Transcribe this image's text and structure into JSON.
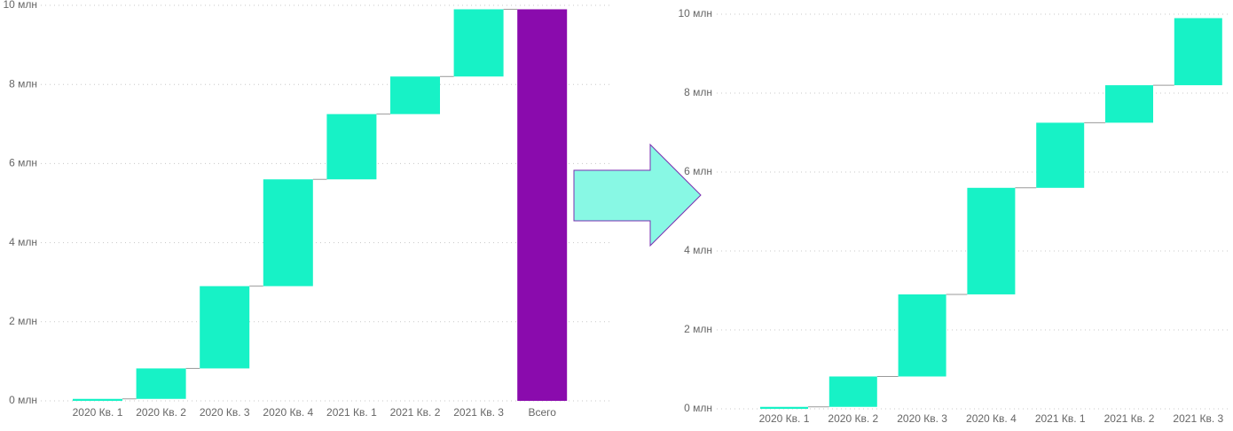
{
  "chart_data": [
    {
      "type": "waterfall",
      "categories": [
        "2020 Кв. 1",
        "2020 Кв. 2",
        "2020 Кв. 3",
        "2020 Кв. 4",
        "2021 Кв. 1",
        "2021 Кв. 2",
        "2021 Кв. 3",
        "Всего"
      ],
      "values": [
        0.05,
        0.77,
        2.08,
        2.7,
        1.65,
        0.95,
        1.7,
        9.9
      ],
      "is_total": [
        false,
        false,
        false,
        false,
        false,
        false,
        false,
        true
      ],
      "color": "#17f2c6",
      "total_color": "#8a0bad",
      "ylim": [
        0,
        10
      ],
      "yticks": [
        {
          "value": 0,
          "label": "0 млн"
        },
        {
          "value": 2,
          "label": "2 млн"
        },
        {
          "value": 4,
          "label": "4 млн"
        },
        {
          "value": 6,
          "label": "6 млн"
        },
        {
          "value": 8,
          "label": "8 млн"
        },
        {
          "value": 10,
          "label": "10 млн"
        }
      ],
      "grid": true
    },
    {
      "type": "waterfall",
      "categories": [
        "2020 Кв. 1",
        "2020 Кв. 2",
        "2020 Кв. 3",
        "2020 Кв. 4",
        "2021 Кв. 1",
        "2021 Кв. 2",
        "2021 Кв. 3"
      ],
      "values": [
        0.05,
        0.77,
        2.08,
        2.7,
        1.65,
        0.95,
        1.7
      ],
      "is_total": [
        false,
        false,
        false,
        false,
        false,
        false,
        false
      ],
      "color": "#17f2c6",
      "total_color": "#8a0bad",
      "ylim": [
        0,
        10
      ],
      "yticks": [
        {
          "value": 0,
          "label": "0 млн"
        },
        {
          "value": 2,
          "label": "2 млн"
        },
        {
          "value": 4,
          "label": "4 млн"
        },
        {
          "value": 6,
          "label": "6 млн"
        },
        {
          "value": 8,
          "label": "8 млн"
        },
        {
          "value": 10,
          "label": "10 млн"
        }
      ],
      "grid": true
    }
  ]
}
